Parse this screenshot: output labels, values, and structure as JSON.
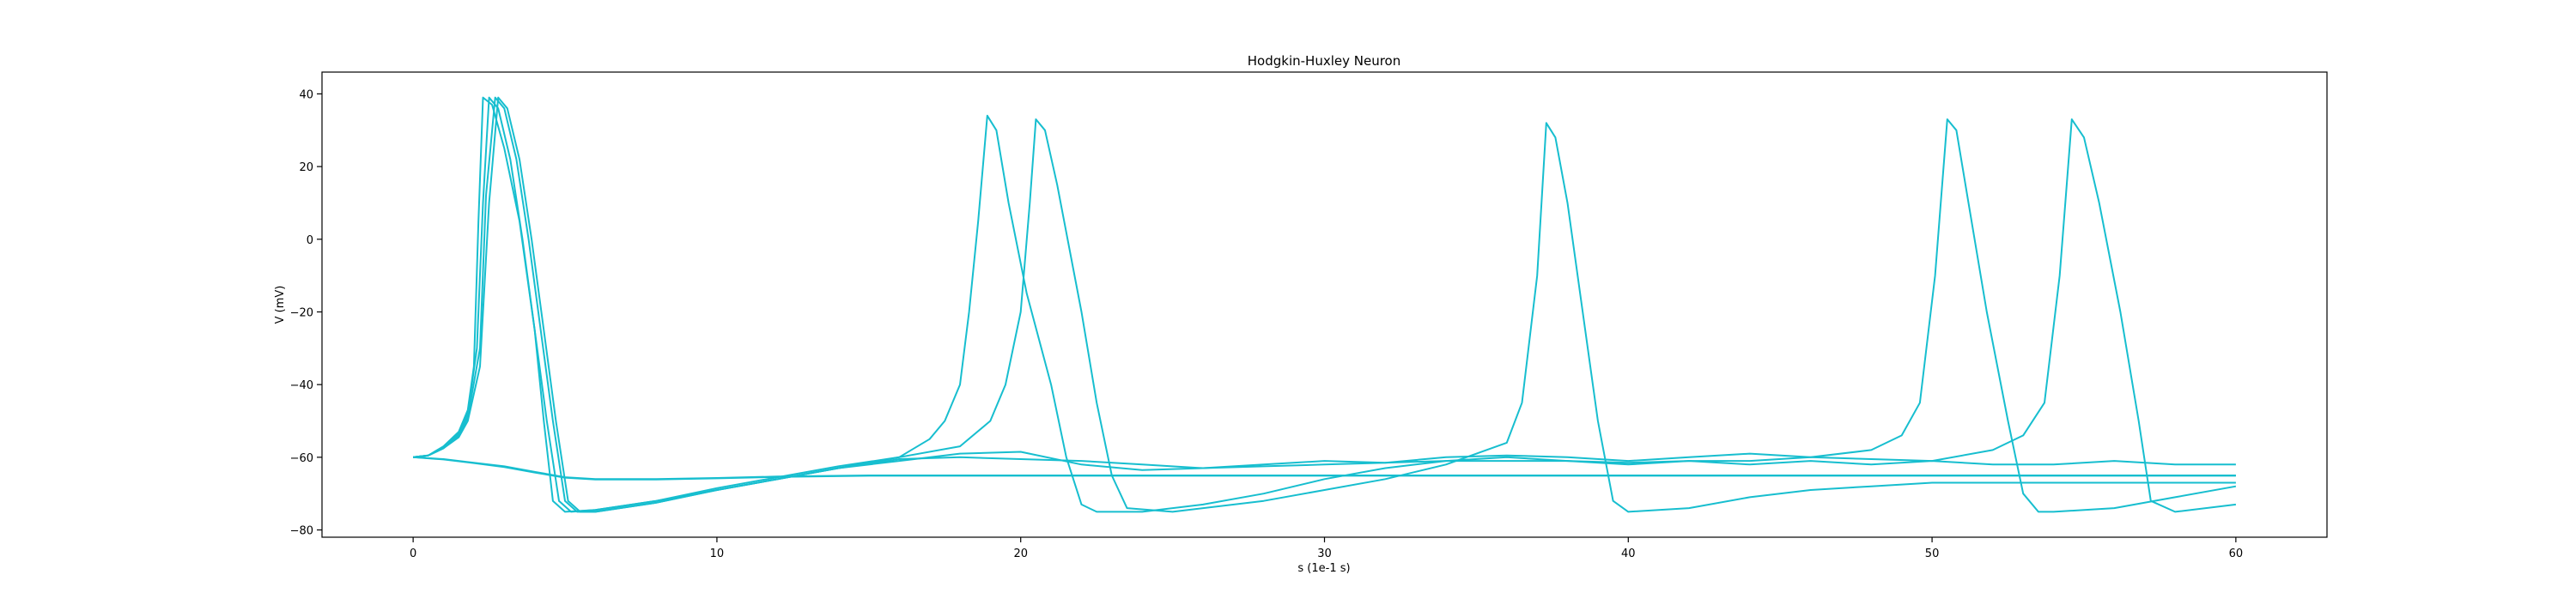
{
  "chart_data": {
    "type": "line",
    "title": "Hodgkin-Huxley Neuron",
    "xlabel": "s (1e-1 s)",
    "ylabel": "V (mV)",
    "xlim": [
      -3,
      63
    ],
    "ylim": [
      -82,
      46
    ],
    "xticks": [
      0,
      10,
      20,
      30,
      40,
      50,
      60
    ],
    "yticks": [
      -80,
      -60,
      -40,
      -20,
      0,
      20,
      40
    ],
    "xtick_labels": [
      "0",
      "10",
      "20",
      "30",
      "40",
      "50",
      "60"
    ],
    "ytick_labels": [
      "−80",
      "−60",
      "−40",
      "−20",
      "0",
      "20",
      "40"
    ],
    "grid": false,
    "line_color": "#17becf",
    "series": [
      {
        "x": [
          0,
          0.5,
          1,
          1.5,
          1.8,
          2.0,
          2.15,
          2.3,
          2.6,
          3.0,
          3.5,
          4.0,
          4.3,
          4.6,
          5.0,
          6,
          8,
          10,
          12,
          14,
          16,
          17,
          17.5,
          18,
          18.3,
          18.6,
          18.9,
          19.2,
          19.6,
          20.2,
          21.0,
          21.5,
          22,
          22.5,
          24,
          26,
          28,
          30,
          32,
          34,
          36,
          38,
          40,
          42,
          44,
          46,
          48,
          50,
          52,
          54,
          56,
          58,
          60
        ],
        "y": [
          -60,
          -59.5,
          -57,
          -53,
          -47,
          -35,
          5,
          39,
          37,
          25,
          5,
          -25,
          -50,
          -72,
          -75,
          -74.5,
          -72,
          -69,
          -66,
          -63,
          -60,
          -55,
          -50,
          -40,
          -20,
          5,
          34,
          30,
          10,
          -15,
          -40,
          -60,
          -73,
          -75,
          -75,
          -73,
          -70,
          -66,
          -63,
          -61,
          -60,
          -61,
          -62,
          -61,
          -62,
          -61,
          -62,
          -61,
          -62,
          -62,
          -61,
          -62,
          -62
        ]
      },
      {
        "x": [
          0,
          0.5,
          1,
          1.5,
          1.8,
          2.1,
          2.3,
          2.5,
          2.8,
          3.2,
          3.6,
          4.0,
          4.4,
          4.8,
          5.2,
          6,
          8,
          10,
          12,
          14,
          16,
          18,
          19,
          19.5,
          20.0,
          20.3,
          20.5,
          20.8,
          21.2,
          22,
          22.5,
          23,
          23.5,
          25,
          28,
          30,
          32,
          34,
          36,
          36.5,
          37.0,
          37.3,
          37.6,
          38.0,
          38.5,
          39.0,
          39.5,
          40,
          42,
          44,
          46,
          48,
          50,
          52,
          54,
          56,
          58,
          60
        ],
        "y": [
          -60,
          -59.5,
          -57.5,
          -53.5,
          -48,
          -30,
          10,
          39,
          36,
          22,
          0,
          -25,
          -50,
          -72,
          -75,
          -74.5,
          -72,
          -68.5,
          -65.5,
          -62.5,
          -60,
          -57,
          -50,
          -40,
          -20,
          10,
          33,
          30,
          15,
          -20,
          -45,
          -65,
          -74,
          -75,
          -72,
          -69,
          -66,
          -62,
          -56,
          -45,
          -10,
          32,
          28,
          10,
          -20,
          -50,
          -72,
          -75,
          -74,
          -71,
          -69,
          -68,
          -67,
          -67,
          -67,
          -67,
          -67,
          -67
        ]
      },
      {
        "x": [
          0,
          0.5,
          1,
          1.5,
          1.8,
          2.2,
          2.4,
          2.7,
          3.0,
          3.4,
          3.8,
          4.2,
          4.6,
          5.0,
          5.4,
          6,
          8,
          10,
          12,
          14,
          16,
          18,
          20,
          22,
          24,
          26,
          28,
          30,
          32,
          34,
          36,
          38,
          40,
          42,
          44,
          46,
          48,
          49,
          49.6,
          50.1,
          50.5,
          50.8,
          51.2,
          51.8,
          52.5,
          53.0,
          53.5,
          54,
          56,
          58,
          60
        ],
        "y": [
          -60,
          -59.5,
          -57.5,
          -54,
          -49,
          -30,
          12,
          39,
          36,
          22,
          0,
          -25,
          -50,
          -72,
          -75,
          -75,
          -72.5,
          -69,
          -66,
          -63,
          -60.5,
          -60,
          -60.5,
          -61,
          -62,
          -63,
          -62,
          -61,
          -61.5,
          -61,
          -61,
          -61,
          -61.5,
          -61,
          -61,
          -60,
          -58,
          -54,
          -45,
          -10,
          33,
          30,
          10,
          -20,
          -50,
          -70,
          -75,
          -75,
          -74,
          -71,
          -68
        ]
      },
      {
        "x": [
          0,
          0.5,
          1,
          1.5,
          1.8,
          2.2,
          2.5,
          2.8,
          3.1,
          3.5,
          3.9,
          4.3,
          4.7,
          5.1,
          5.5,
          6,
          8,
          10,
          12,
          14,
          16,
          18,
          20,
          22,
          24,
          26,
          28,
          30,
          32,
          34,
          36,
          38,
          40,
          42,
          44,
          46,
          48,
          50,
          52,
          53,
          53.7,
          54.2,
          54.6,
          55.0,
          55.5,
          56.2,
          56.8,
          57.2,
          58,
          60
        ],
        "y": [
          -60,
          -59.5,
          -57.5,
          -54.5,
          -50,
          -35,
          10,
          39,
          36,
          22,
          0,
          -25,
          -50,
          -72,
          -75,
          -75,
          -72.5,
          -69,
          -66,
          -63,
          -61,
          -59,
          -58.5,
          -62,
          -63.5,
          -63,
          -62.5,
          -62,
          -61.5,
          -60,
          -59.5,
          -60,
          -61,
          -60,
          -59,
          -60,
          -60.5,
          -61,
          -58,
          -54,
          -45,
          -10,
          33,
          28,
          10,
          -20,
          -50,
          -72,
          -75,
          -73
        ]
      },
      {
        "x": [
          0,
          1,
          2,
          3,
          4,
          5,
          6,
          8,
          10,
          12,
          15,
          20,
          30,
          40,
          50,
          60
        ],
        "y": [
          -60,
          -60.5,
          -61.5,
          -62.5,
          -64,
          -65.5,
          -66,
          -66,
          -65.7,
          -65.3,
          -65,
          -65,
          -65,
          -65,
          -65,
          -65
        ]
      },
      {
        "x": [
          0,
          1,
          2,
          3,
          4,
          5,
          6,
          8,
          10,
          12,
          15,
          20,
          30,
          40,
          50,
          60
        ],
        "y": [
          -60,
          -60.6,
          -61.6,
          -62.7,
          -64.2,
          -65.6,
          -66.1,
          -66.1,
          -65.8,
          -65.4,
          -65.1,
          -65.1,
          -65.1,
          -65.1,
          -65.1,
          -65.1
        ]
      }
    ]
  }
}
